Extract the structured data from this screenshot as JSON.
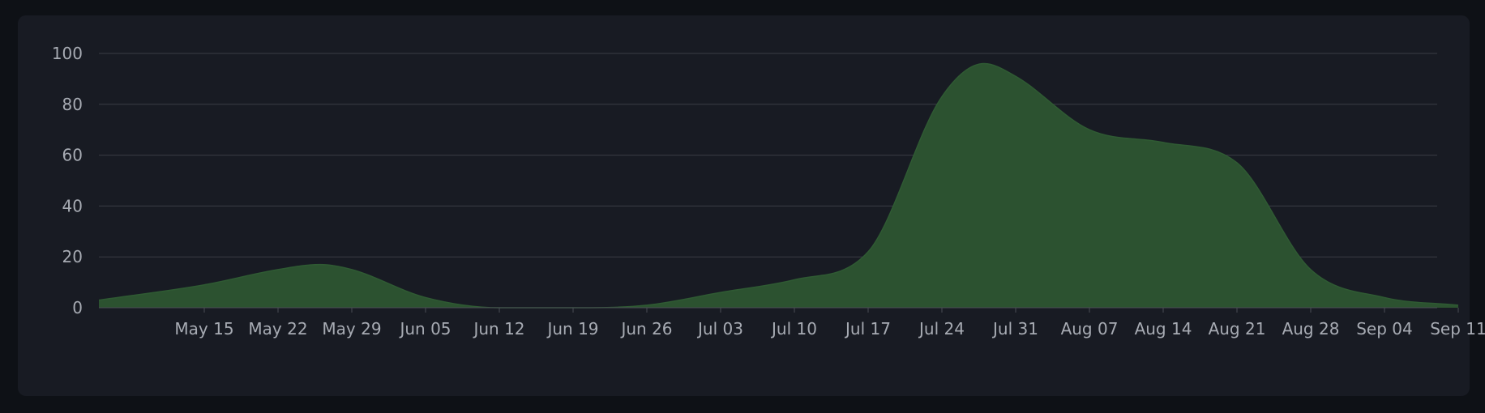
{
  "chart_data": {
    "type": "area",
    "title": "",
    "xlabel": "",
    "ylabel": "",
    "ylim": [
      0,
      100
    ],
    "y_ticks": [
      0,
      20,
      40,
      60,
      80,
      100
    ],
    "y_tick_labels": [
      "0",
      "20",
      "40",
      "60",
      "80",
      "100"
    ],
    "x_range": [
      "2024-05-05",
      "2024-09-11"
    ],
    "x_ticks": [
      "2024-05-15",
      "2024-05-22",
      "2024-05-29",
      "2024-06-05",
      "2024-06-12",
      "2024-06-19",
      "2024-06-26",
      "2024-07-03",
      "2024-07-10",
      "2024-07-17",
      "2024-07-24",
      "2024-07-31",
      "2024-08-07",
      "2024-08-14",
      "2024-08-21",
      "2024-08-28",
      "2024-09-04",
      "2024-09-11"
    ],
    "x_tick_labels": [
      "May 15",
      "May 22",
      "May 29",
      "Jun 05",
      "Jun 12",
      "Jun 19",
      "Jun 26",
      "Jul 03",
      "Jul 10",
      "Jul 17",
      "Jul 24",
      "Jul 31",
      "Aug 07",
      "Aug 14",
      "Aug 21",
      "Aug 28",
      "Sep 04",
      "Sep 11"
    ],
    "grid": "horizontal",
    "legend": "none",
    "colors": {
      "fill": "#2c5230",
      "line": "#2f5a33",
      "grid": "#3a3d45",
      "axis": "#4a4d55",
      "text": "#a7abb3",
      "background": "#181b23",
      "page": "#0e1116"
    },
    "series": [
      {
        "x": [
          "2024-05-05",
          "2024-05-15",
          "2024-05-22",
          "2024-05-26",
          "2024-05-29",
          "2024-06-05",
          "2024-06-12",
          "2024-06-19",
          "2024-06-26",
          "2024-07-03",
          "2024-07-10",
          "2024-07-17",
          "2024-07-24",
          "2024-07-28",
          "2024-07-31",
          "2024-08-07",
          "2024-08-14",
          "2024-08-21",
          "2024-08-28",
          "2024-09-04",
          "2024-09-11"
        ],
        "y": [
          3,
          9,
          15,
          17,
          15,
          4,
          0,
          0,
          1,
          6,
          11,
          22,
          83,
          96,
          91,
          70,
          65,
          57,
          15,
          4,
          1
        ]
      }
    ]
  }
}
